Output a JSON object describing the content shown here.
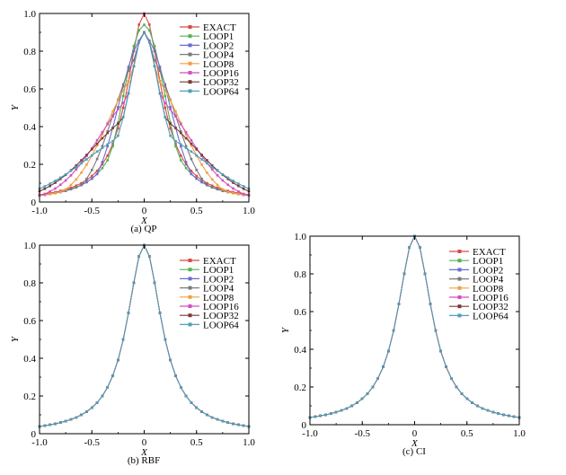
{
  "chart_data": [
    {
      "type": "line",
      "caption": "(a) QP",
      "xlabel": "X",
      "ylabel": "Y",
      "xlim": [
        -1.0,
        1.0
      ],
      "ylim": [
        0,
        1.0
      ],
      "xticks": [
        "-1.0",
        "-0.5",
        "0",
        "0.5",
        "1.0"
      ],
      "yticks": [
        "0",
        "0.2",
        "0.4",
        "0.6",
        "0.8",
        "1.0"
      ],
      "legend_position": "top-right",
      "series": [
        {
          "name": "EXACT",
          "peak": 1.0,
          "color": "#d94a4a"
        },
        {
          "name": "LOOP1",
          "peak": 0.94,
          "color": "#55b055"
        },
        {
          "name": "LOOP2",
          "peak": 0.875,
          "color": "#6b6bd0"
        },
        {
          "name": "LOOP4",
          "peak": 0.8,
          "color": "#7a7a7a"
        },
        {
          "name": "LOOP8",
          "peak": 0.7,
          "color": "#f0a040"
        },
        {
          "name": "LOOP16",
          "peak": 0.59,
          "color": "#d24fc0"
        },
        {
          "name": "LOOP32",
          "peak": 0.475,
          "color": "#7a3a3a"
        },
        {
          "name": "LOOP64",
          "peak": 0.375,
          "color": "#4f9fb8"
        }
      ]
    },
    {
      "type": "line",
      "caption": "(b) RBF",
      "xlabel": "X",
      "ylabel": "Y",
      "xlim": [
        -1.0,
        1.0
      ],
      "ylim": [
        0,
        1.0
      ],
      "xticks": [
        "-1.0",
        "-0.5",
        "0",
        "0.5",
        "1.0"
      ],
      "yticks": [
        "0",
        "0.2",
        "0.4",
        "0.6",
        "0.8",
        "1.0"
      ],
      "legend_position": "top-right",
      "series": [
        {
          "name": "EXACT",
          "peak": 1.0,
          "color": "#d94a4a"
        },
        {
          "name": "LOOP1",
          "peak": 1.0,
          "color": "#55b055"
        },
        {
          "name": "LOOP2",
          "peak": 1.0,
          "color": "#6b6bd0"
        },
        {
          "name": "LOOP4",
          "peak": 1.0,
          "color": "#7a7a7a"
        },
        {
          "name": "LOOP8",
          "peak": 1.0,
          "color": "#f0a040"
        },
        {
          "name": "LOOP16",
          "peak": 1.0,
          "color": "#d24fc0"
        },
        {
          "name": "LOOP32",
          "peak": 1.0,
          "color": "#7a3a3a"
        },
        {
          "name": "LOOP64",
          "peak": 1.0,
          "color": "#4f9fb8"
        }
      ]
    },
    {
      "type": "line",
      "caption": "(c) CI",
      "xlabel": "X",
      "ylabel": "Y",
      "xlim": [
        -1.0,
        1.0
      ],
      "ylim": [
        0,
        1.0
      ],
      "xticks": [
        "-1.0",
        "-0.5",
        "0",
        "0.5",
        "1.0"
      ],
      "yticks": [
        "0",
        "0.2",
        "0.4",
        "0.6",
        "0.8",
        "1.0"
      ],
      "legend_position": "top-right",
      "series": [
        {
          "name": "EXACT",
          "peak": 1.0,
          "color": "#d94a4a"
        },
        {
          "name": "LOOP1",
          "peak": 1.0,
          "color": "#55b055"
        },
        {
          "name": "LOOP2",
          "peak": 1.0,
          "color": "#6b6bd0"
        },
        {
          "name": "LOOP4",
          "peak": 1.0,
          "color": "#7a7a7a"
        },
        {
          "name": "LOOP8",
          "peak": 1.0,
          "color": "#f0a040"
        },
        {
          "name": "LOOP16",
          "peak": 1.0,
          "color": "#d24fc0"
        },
        {
          "name": "LOOP32",
          "peak": 1.0,
          "color": "#7a3a3a"
        },
        {
          "name": "LOOP64",
          "peak": 1.0,
          "color": "#4f9fb8"
        }
      ]
    }
  ]
}
